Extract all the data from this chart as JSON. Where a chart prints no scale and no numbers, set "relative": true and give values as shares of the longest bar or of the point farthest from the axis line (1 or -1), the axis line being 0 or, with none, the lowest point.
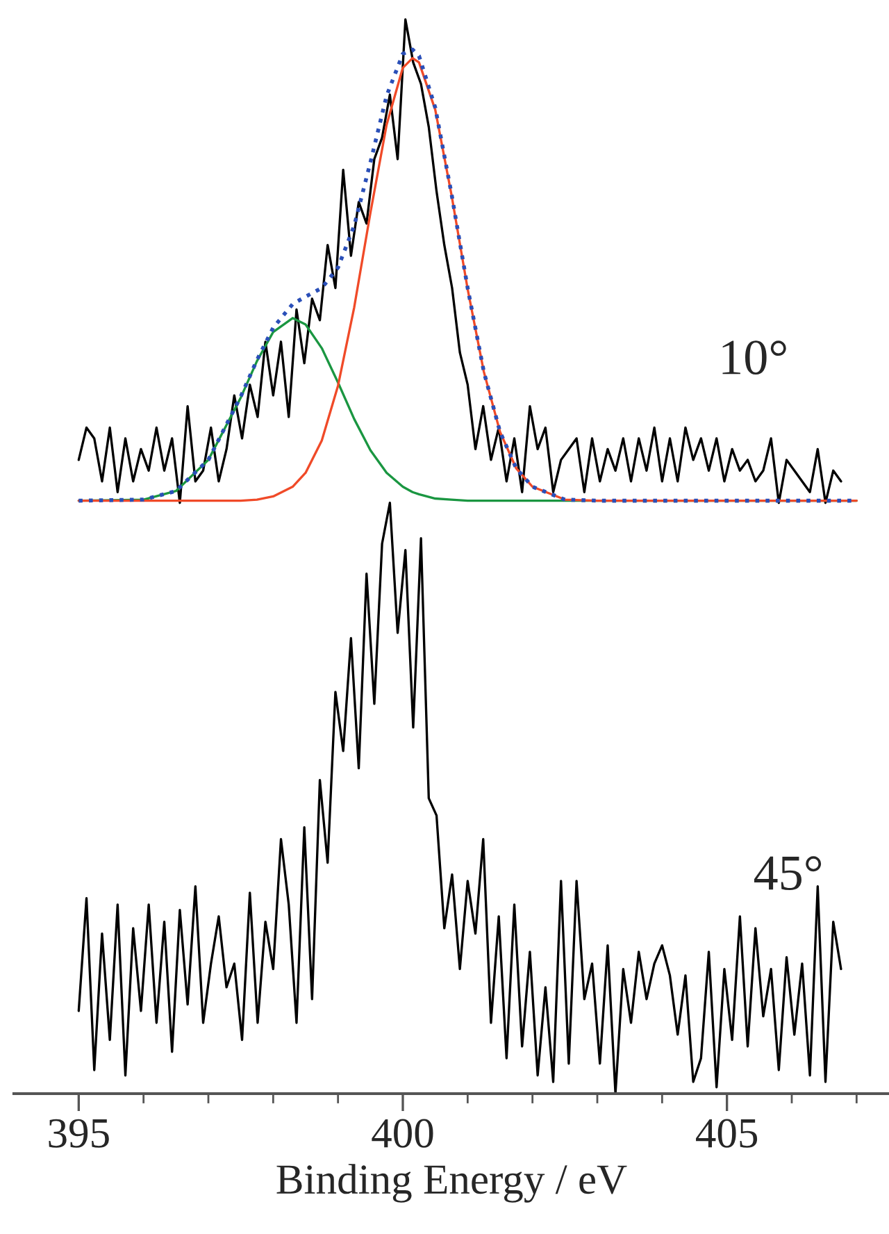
{
  "chart_data": {
    "type": "line",
    "relative": true,
    "xlim": [
      394,
      407.5
    ],
    "tick_labels": "x",
    "grid": false,
    "legend": false,
    "xlabel": "Binding Energy / eV",
    "xticks": [
      395,
      {
        "value": 396,
        "label": null
      },
      {
        "value": 397,
        "label": null
      },
      {
        "value": 398,
        "label": null
      },
      {
        "value": 399,
        "label": null
      },
      400,
      {
        "value": 401,
        "label": null
      },
      {
        "value": 402,
        "label": null
      },
      {
        "value": 403,
        "label": null
      },
      {
        "value": 404,
        "label": null
      },
      405,
      {
        "value": 406,
        "label": null
      },
      {
        "value": 407,
        "label": null
      }
    ],
    "annotations": [
      "10°",
      "45°"
    ],
    "series": [
      {
        "color": "#000000",
        "line_style": "solid",
        "x": [
          395.0,
          395.12,
          395.24,
          395.36,
          395.48,
          395.6,
          395.72,
          395.84,
          395.96,
          396.08,
          396.2,
          396.32,
          396.44,
          396.56,
          396.68,
          396.8,
          396.92,
          397.04,
          397.16,
          397.28,
          397.4,
          397.52,
          397.64,
          397.76,
          397.88,
          398.0,
          398.12,
          398.24,
          398.36,
          398.48,
          398.6,
          398.72,
          398.84,
          398.96,
          399.08,
          399.2,
          399.32,
          399.44,
          399.56,
          399.68,
          399.8,
          399.92,
          400.04,
          400.16,
          400.28,
          400.4,
          400.52,
          400.64,
          400.76,
          400.88,
          401.0,
          401.12,
          401.24,
          401.36,
          401.48,
          401.6,
          401.72,
          401.84,
          401.96,
          402.08,
          402.2,
          402.32,
          402.44,
          402.56,
          402.68,
          402.8,
          402.92,
          403.04,
          403.16,
          403.28,
          403.4,
          403.52,
          403.64,
          403.76,
          403.88,
          404.0,
          404.12,
          404.24,
          404.36,
          404.48,
          404.6,
          404.72,
          404.84,
          404.96,
          405.08,
          405.2,
          405.32,
          405.44,
          405.56,
          405.68,
          405.8,
          405.92,
          406.04,
          406.16,
          406.28,
          406.4,
          406.52,
          406.64,
          406.76
        ],
        "values": [
          0.59,
          0.62,
          0.61,
          0.57,
          0.62,
          0.56,
          0.61,
          0.57,
          0.6,
          0.58,
          0.62,
          0.58,
          0.61,
          0.55,
          0.64,
          0.57,
          0.58,
          0.62,
          0.57,
          0.6,
          0.65,
          0.61,
          0.66,
          0.63,
          0.7,
          0.65,
          0.7,
          0.63,
          0.73,
          0.68,
          0.74,
          0.72,
          0.79,
          0.75,
          0.86,
          0.78,
          0.83,
          0.81,
          0.87,
          0.89,
          0.93,
          0.87,
          1.0,
          0.96,
          0.94,
          0.9,
          0.84,
          0.79,
          0.75,
          0.69,
          0.66,
          0.6,
          0.64,
          0.59,
          0.62,
          0.57,
          0.61,
          0.56,
          0.64,
          0.6,
          0.62,
          0.56,
          0.59,
          0.6,
          0.61,
          0.56,
          0.61,
          0.57,
          0.6,
          0.58,
          0.61,
          0.57,
          0.61,
          0.58,
          0.62,
          0.57,
          0.61,
          0.57,
          0.62,
          0.59,
          0.61,
          0.58,
          0.61,
          0.57,
          0.6,
          0.58,
          0.59,
          0.57,
          0.58,
          0.61,
          0.55,
          0.59,
          0.58,
          0.57,
          0.56,
          0.6,
          0.55,
          0.58,
          0.57
        ]
      },
      {
        "color": "#1a9641",
        "line_style": "solid",
        "x": [
          395,
          396,
          396.5,
          397,
          397.5,
          397.75,
          398,
          398.3,
          398.5,
          398.75,
          399,
          399.25,
          399.5,
          399.75,
          400,
          400.15,
          400.25,
          400.5,
          400.75,
          401,
          401.25,
          401.5,
          401.75,
          402,
          402.5,
          403,
          407
        ],
        "values": [
          0.552,
          0.553,
          0.561,
          0.59,
          0.648,
          0.682,
          0.709,
          0.722,
          0.716,
          0.694,
          0.662,
          0.628,
          0.599,
          0.578,
          0.565,
          0.56,
          0.558,
          0.554,
          0.553,
          0.552,
          0.552,
          0.552,
          0.552,
          0.552,
          0.552,
          0.552,
          0.552
        ]
      },
      {
        "color": "#f04a28",
        "line_style": "solid",
        "x": [
          395,
          396,
          396.5,
          397,
          397.5,
          397.75,
          398,
          398.3,
          398.5,
          398.75,
          399,
          399.25,
          399.5,
          399.75,
          400,
          400.15,
          400.25,
          400.5,
          400.75,
          401,
          401.25,
          401.5,
          401.75,
          402,
          402.5,
          403,
          407
        ],
        "values": [
          0.552,
          0.552,
          0.552,
          0.552,
          0.552,
          0.553,
          0.556,
          0.565,
          0.578,
          0.608,
          0.659,
          0.732,
          0.82,
          0.902,
          0.955,
          0.964,
          0.96,
          0.916,
          0.837,
          0.749,
          0.672,
          0.616,
          0.582,
          0.565,
          0.553,
          0.552,
          0.552
        ]
      },
      {
        "color": "#2a4fb8",
        "line_style": "dotted",
        "x": [
          395,
          396,
          396.5,
          397,
          397.5,
          397.75,
          398,
          398.3,
          398.5,
          398.75,
          399,
          399.25,
          399.5,
          399.75,
          400,
          400.15,
          400.25,
          400.5,
          400.75,
          401,
          401.25,
          401.5,
          401.75,
          402,
          402.5,
          403,
          407
        ],
        "values": [
          0.552,
          0.553,
          0.561,
          0.59,
          0.649,
          0.683,
          0.713,
          0.735,
          0.742,
          0.75,
          0.769,
          0.808,
          0.867,
          0.929,
          0.968,
          0.972,
          0.966,
          0.918,
          0.838,
          0.75,
          0.672,
          0.616,
          0.582,
          0.565,
          0.553,
          0.552,
          0.552
        ]
      },
      {
        "color": "#000000",
        "line_style": "solid",
        "x": [
          395.0,
          395.12,
          395.24,
          395.36,
          395.48,
          395.6,
          395.72,
          395.84,
          395.96,
          396.08,
          396.2,
          396.32,
          396.44,
          396.56,
          396.68,
          396.8,
          396.92,
          397.04,
          397.16,
          397.28,
          397.4,
          397.52,
          397.64,
          397.76,
          397.88,
          398.0,
          398.12,
          398.24,
          398.36,
          398.48,
          398.6,
          398.72,
          398.84,
          398.96,
          399.08,
          399.2,
          399.32,
          399.44,
          399.56,
          399.68,
          399.8,
          399.92,
          400.04,
          400.16,
          400.28,
          400.4,
          400.52,
          400.64,
          400.76,
          400.88,
          401.0,
          401.12,
          401.24,
          401.36,
          401.48,
          401.6,
          401.72,
          401.84,
          401.96,
          402.08,
          402.2,
          402.32,
          402.44,
          402.56,
          402.68,
          402.8,
          402.92,
          403.04,
          403.16,
          403.28,
          403.4,
          403.52,
          403.64,
          403.76,
          403.88,
          404.0,
          404.12,
          404.24,
          404.36,
          404.48,
          404.6,
          404.72,
          404.84,
          404.96,
          405.08,
          405.2,
          405.32,
          405.44,
          405.56,
          405.68,
          405.8,
          405.92,
          406.04,
          406.16,
          406.28,
          406.4,
          406.52,
          406.64,
          406.76
        ],
        "values": [
          0.077,
          0.182,
          0.022,
          0.149,
          0.05,
          0.176,
          0.017,
          0.154,
          0.077,
          0.176,
          0.066,
          0.16,
          0.039,
          0.171,
          0.083,
          0.193,
          0.066,
          0.121,
          0.165,
          0.099,
          0.121,
          0.05,
          0.187,
          0.066,
          0.16,
          0.116,
          0.237,
          0.176,
          0.066,
          0.248,
          0.088,
          0.292,
          0.215,
          0.374,
          0.319,
          0.424,
          0.303,
          0.484,
          0.363,
          0.512,
          0.55,
          0.429,
          0.506,
          0.341,
          0.517,
          0.275,
          0.259,
          0.154,
          0.204,
          0.116,
          0.198,
          0.149,
          0.237,
          0.066,
          0.165,
          0.033,
          0.176,
          0.044,
          0.132,
          0.017,
          0.099,
          0.011,
          0.198,
          0.028,
          0.198,
          0.088,
          0.121,
          0.028,
          0.138,
          0.0,
          0.116,
          0.066,
          0.132,
          0.088,
          0.121,
          0.138,
          0.11,
          0.055,
          0.11,
          0.011,
          0.033,
          0.132,
          0.006,
          0.116,
          0.05,
          0.165,
          0.044,
          0.154,
          0.072,
          0.116,
          0.022,
          0.127,
          0.055,
          0.121,
          0.017,
          0.193,
          0.011,
          0.16,
          0.116
        ]
      }
    ]
  }
}
